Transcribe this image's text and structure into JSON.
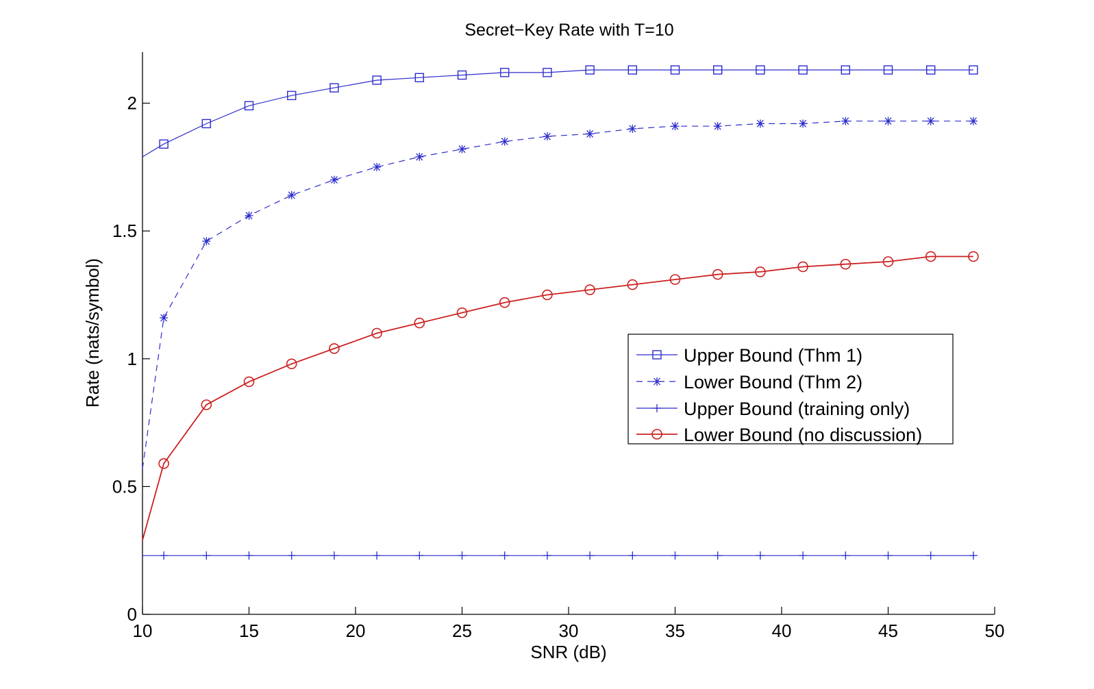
{
  "chart_data": {
    "type": "line",
    "title": "Secret−Key Rate with T=10",
    "xlabel": "SNR (dB)",
    "ylabel": "Rate (nats/symbol)",
    "xlim": [
      10,
      50
    ],
    "ylim": [
      0,
      2.2
    ],
    "xticks": [
      10,
      15,
      20,
      25,
      30,
      35,
      40,
      45,
      50
    ],
    "xtick_labels": [
      "10",
      "15",
      "20",
      "25",
      "30",
      "35",
      "40",
      "45",
      "50"
    ],
    "yticks": [
      0,
      0.5,
      1,
      1.5,
      2
    ],
    "ytick_labels": [
      "0",
      "0.5",
      "1",
      "1.5",
      "2"
    ],
    "grid": false,
    "legend_position": "right",
    "series": [
      {
        "name": "Upper Bound (Thm 1)",
        "color": "#2b2bcc",
        "line": "solid",
        "marker": "square",
        "x": [
          10,
          11,
          13,
          15,
          17,
          19,
          21,
          23,
          25,
          27,
          29,
          31,
          33,
          35,
          37,
          39,
          41,
          43,
          45,
          47,
          49
        ],
        "y": [
          1.79,
          1.84,
          1.92,
          1.99,
          2.03,
          2.06,
          2.09,
          2.1,
          2.11,
          2.12,
          2.12,
          2.13,
          2.13,
          2.13,
          2.13,
          2.13,
          2.13,
          2.13,
          2.13,
          2.13,
          2.13
        ],
        "marker_from": 1
      },
      {
        "name": "Lower Bound (Thm 2)",
        "color": "#2b2bcc",
        "line": "dashed",
        "marker": "asterisk",
        "x": [
          10,
          11,
          13,
          15,
          17,
          19,
          21,
          23,
          25,
          27,
          29,
          31,
          33,
          35,
          37,
          39,
          41,
          43,
          45,
          47,
          49
        ],
        "y": [
          0.57,
          1.16,
          1.46,
          1.56,
          1.64,
          1.7,
          1.75,
          1.79,
          1.82,
          1.85,
          1.87,
          1.88,
          1.9,
          1.91,
          1.91,
          1.92,
          1.92,
          1.93,
          1.93,
          1.93,
          1.93
        ],
        "marker_from": 1
      },
      {
        "name": "Upper Bound (training only)",
        "color": "#2b2bcc",
        "line": "solid",
        "marker": "plus",
        "x": [
          10,
          11,
          13,
          15,
          17,
          19,
          21,
          23,
          25,
          27,
          29,
          31,
          33,
          35,
          37,
          39,
          41,
          43,
          45,
          47,
          49
        ],
        "y": [
          0.23,
          0.23,
          0.23,
          0.23,
          0.23,
          0.23,
          0.23,
          0.23,
          0.23,
          0.23,
          0.23,
          0.23,
          0.23,
          0.23,
          0.23,
          0.23,
          0.23,
          0.23,
          0.23,
          0.23,
          0.23
        ],
        "marker_from": 1
      },
      {
        "name": "Lower Bound (no discussion)",
        "color": "#cc1f1f",
        "line": "solid",
        "marker": "circle",
        "x": [
          10,
          11,
          13,
          15,
          17,
          19,
          21,
          23,
          25,
          27,
          29,
          31,
          33,
          35,
          37,
          39,
          41,
          43,
          45,
          47,
          49
        ],
        "y": [
          0.29,
          0.59,
          0.82,
          0.91,
          0.98,
          1.04,
          1.1,
          1.14,
          1.18,
          1.22,
          1.25,
          1.27,
          1.29,
          1.31,
          1.33,
          1.34,
          1.36,
          1.37,
          1.38,
          1.4,
          1.4
        ],
        "marker_from": 1
      }
    ]
  }
}
